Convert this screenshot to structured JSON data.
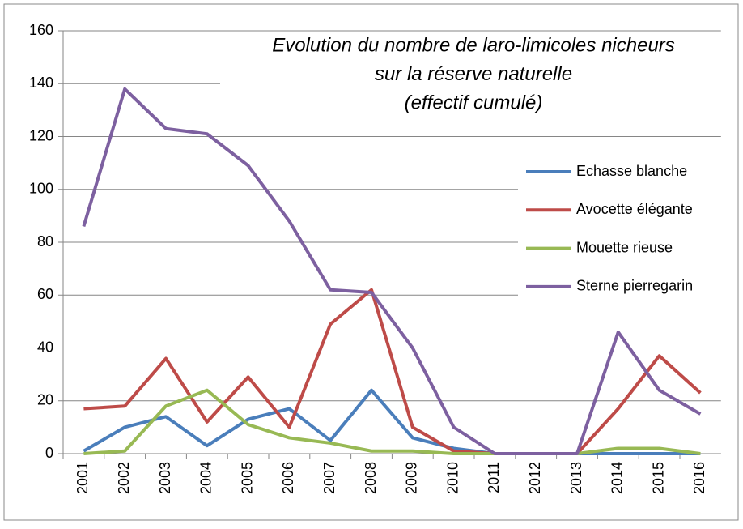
{
  "chart_data": {
    "type": "line",
    "title": [
      "Evolution du nombre de laro-limicoles nicheurs",
      "sur la réserve naturelle",
      "(effectif cumulé)"
    ],
    "categories": [
      "2001",
      "2002",
      "2003",
      "2004",
      "2005",
      "2006",
      "2007",
      "2008",
      "2009",
      "2010",
      "2011",
      "2012",
      "2013",
      "2014",
      "2015",
      "2016"
    ],
    "series": [
      {
        "name": "Echasse blanche",
        "color": "#4a7ebb",
        "values": [
          1,
          10,
          14,
          3,
          13,
          17,
          5,
          24,
          6,
          2,
          0,
          0,
          0,
          0,
          0,
          0
        ]
      },
      {
        "name": "Avocette élégante",
        "color": "#be4b48",
        "values": [
          17,
          18,
          36,
          12,
          29,
          10,
          49,
          62,
          10,
          1,
          0,
          0,
          0,
          17,
          37,
          23
        ]
      },
      {
        "name": "Mouette rieuse",
        "color": "#98b954",
        "values": [
          0,
          1,
          18,
          24,
          11,
          6,
          4,
          1,
          1,
          0,
          0,
          0,
          0,
          2,
          2,
          0
        ]
      },
      {
        "name": "Sterne pierregarin",
        "color": "#7d60a0",
        "values": [
          86,
          138,
          123,
          121,
          109,
          88,
          62,
          61,
          40,
          10,
          0,
          0,
          0,
          46,
          24,
          15
        ]
      }
    ],
    "ylim": [
      0,
      160
    ],
    "yticks": [
      0,
      20,
      40,
      60,
      80,
      100,
      120,
      140,
      160
    ],
    "grid": true,
    "legend": "right"
  }
}
